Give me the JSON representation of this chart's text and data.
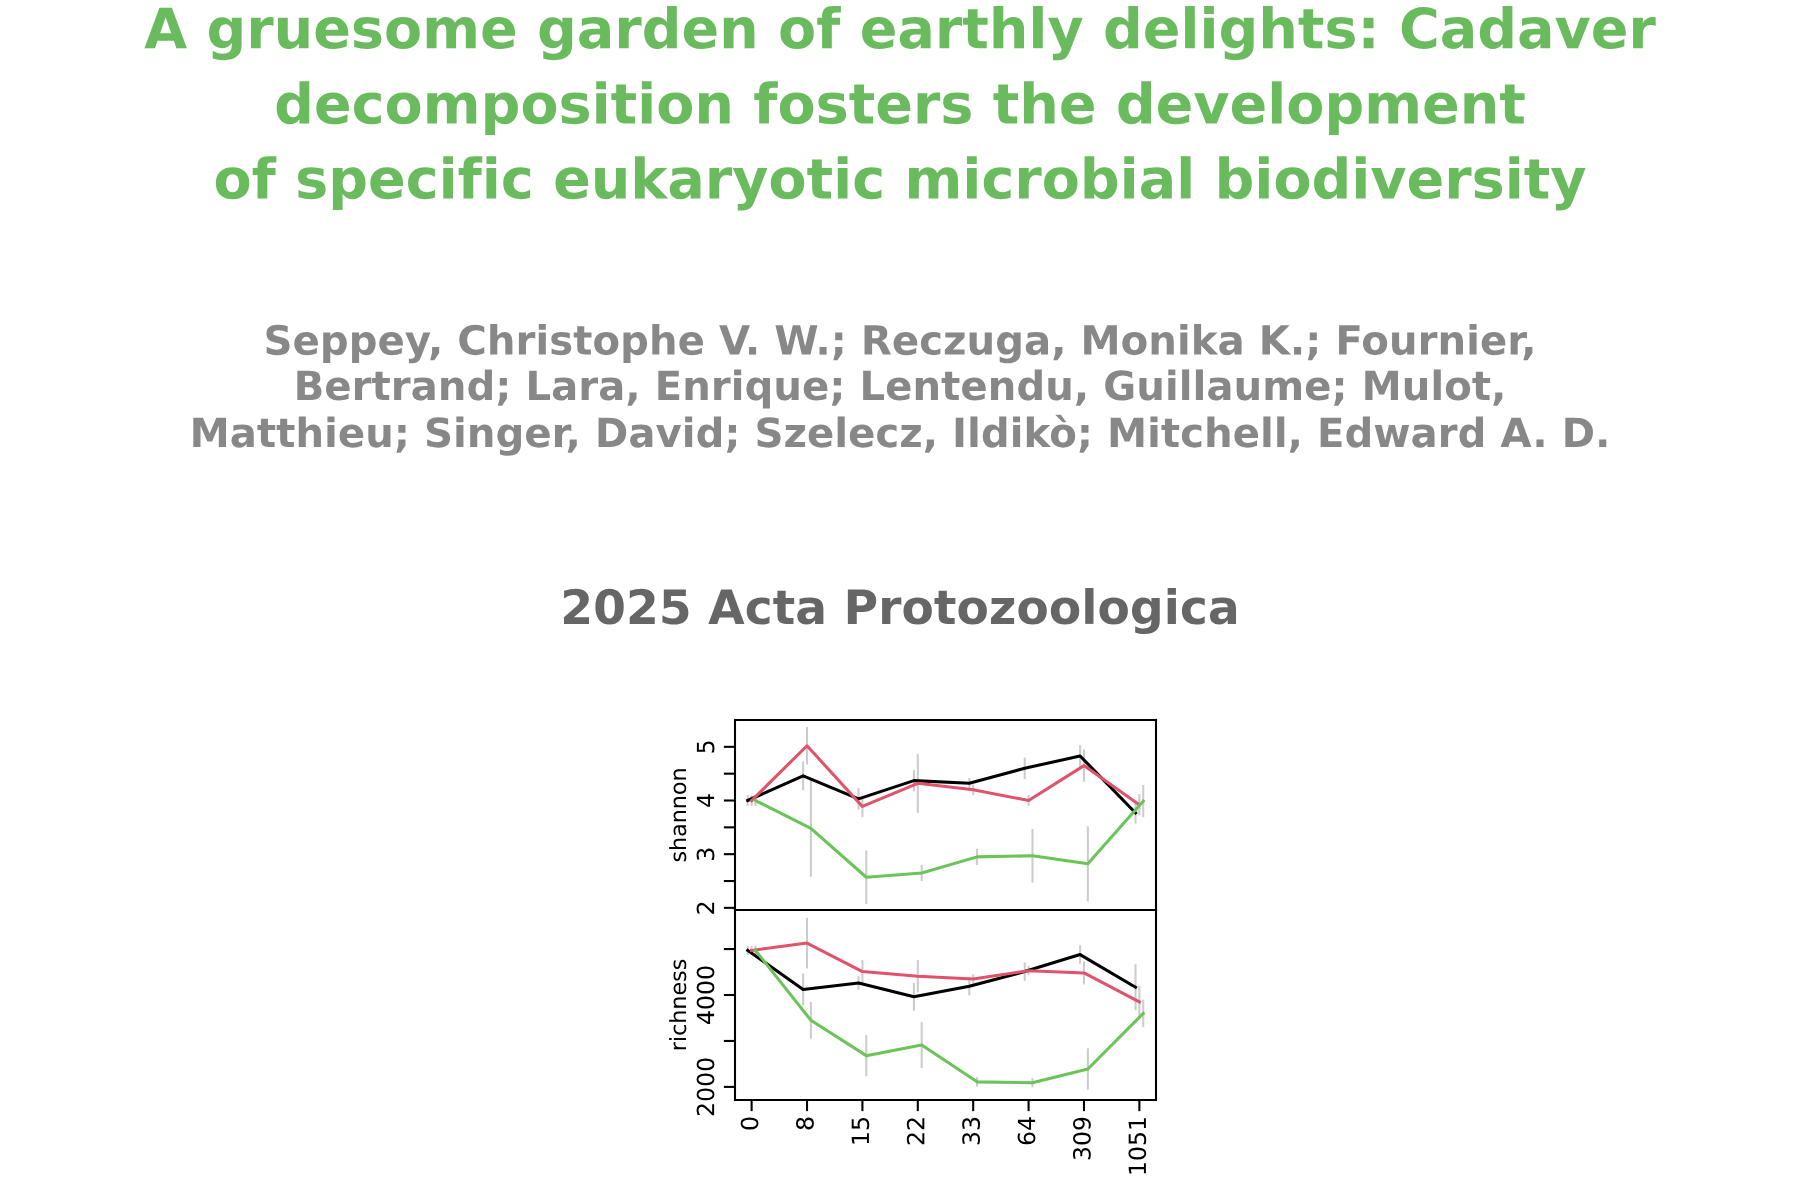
{
  "chart_data": [
    {
      "type": "line",
      "title": "A gruesome garden of earthly delights: Cadaver\ndecomposition fosters the development\nof specific eukaryotic microbial biodiversity",
      "subtitle": "Seppey, Christophe V. W.; Reczuga, Monika K.; Fournier,\nBertrand; Lara, Enrique; Lentendu, Guillaume; Mulot,\nMatthieu; Singer, David; Szelecz, Ildikò; Mitchell, Edward A. D.",
      "annotations": [
        "2025 Acta Protozoologica"
      ],
      "ylabel": "shannon",
      "categories": [
        "0",
        "8",
        "15",
        "22",
        "33",
        "64",
        "309",
        "1051"
      ],
      "ylim": [
        1.96,
        5.5
      ],
      "yticks": [
        2,
        {
          "value": 2.5,
          "label": null
        },
        3,
        {
          "value": 3.5,
          "label": null
        },
        4,
        {
          "value": 4.5,
          "label": null
        },
        5
      ],
      "tick_labels": "y",
      "grid": false,
      "legend": false,
      "series": [
        {
          "color": "#000000",
          "values": [
            4.0,
            4.46,
            4.03,
            4.37,
            4.32,
            4.6,
            4.83,
            3.77
          ],
          "errors": [
            0.1,
            0.27,
            0.2,
            0.2,
            0.1,
            0.2,
            0.2,
            0.2
          ]
        },
        {
          "color": "#df536b",
          "values": [
            4.0,
            5.02,
            3.89,
            4.32,
            4.2,
            4.0,
            4.65,
            3.92
          ],
          "errors": [
            0.1,
            0.35,
            0.2,
            0.55,
            0.1,
            0.1,
            0.3,
            0.2
          ]
        },
        {
          "color": "#6cc35a",
          "values": [
            4.0,
            3.48,
            2.57,
            2.65,
            2.95,
            2.97,
            2.82,
            3.99
          ],
          "errors": [
            0.1,
            0.9,
            0.5,
            0.15,
            0.15,
            0.5,
            0.7,
            0.3
          ]
        }
      ]
    },
    {
      "type": "line",
      "ylabel": "richness",
      "categories": [
        "0",
        "8",
        "15",
        "22",
        "33",
        "64",
        "309",
        "1051"
      ],
      "ylim": [
        1715,
        5850
      ],
      "yticks": [
        2000,
        {
          "value": 3000,
          "label": null
        },
        4000,
        {
          "value": 5000,
          "label": null
        }
      ],
      "grid": false,
      "legend": false,
      "series": [
        {
          "color": "#000000",
          "values": [
            4970,
            4120,
            4260,
            3960,
            4190,
            4510,
            4880,
            4170
          ],
          "errors": [
            100,
            350,
            150,
            300,
            200,
            200,
            200,
            500
          ]
        },
        {
          "color": "#df536b",
          "values": [
            4970,
            5130,
            4510,
            4410,
            4350,
            4530,
            4480,
            3850
          ],
          "errors": [
            100,
            550,
            250,
            350,
            100,
            100,
            250,
            350
          ]
        },
        {
          "color": "#6cc35a",
          "values": [
            4970,
            3450,
            2680,
            2910,
            2110,
            2090,
            2390,
            3600
          ],
          "errors": [
            100,
            400,
            450,
            500,
            100,
            100,
            450,
            300
          ]
        }
      ]
    }
  ]
}
